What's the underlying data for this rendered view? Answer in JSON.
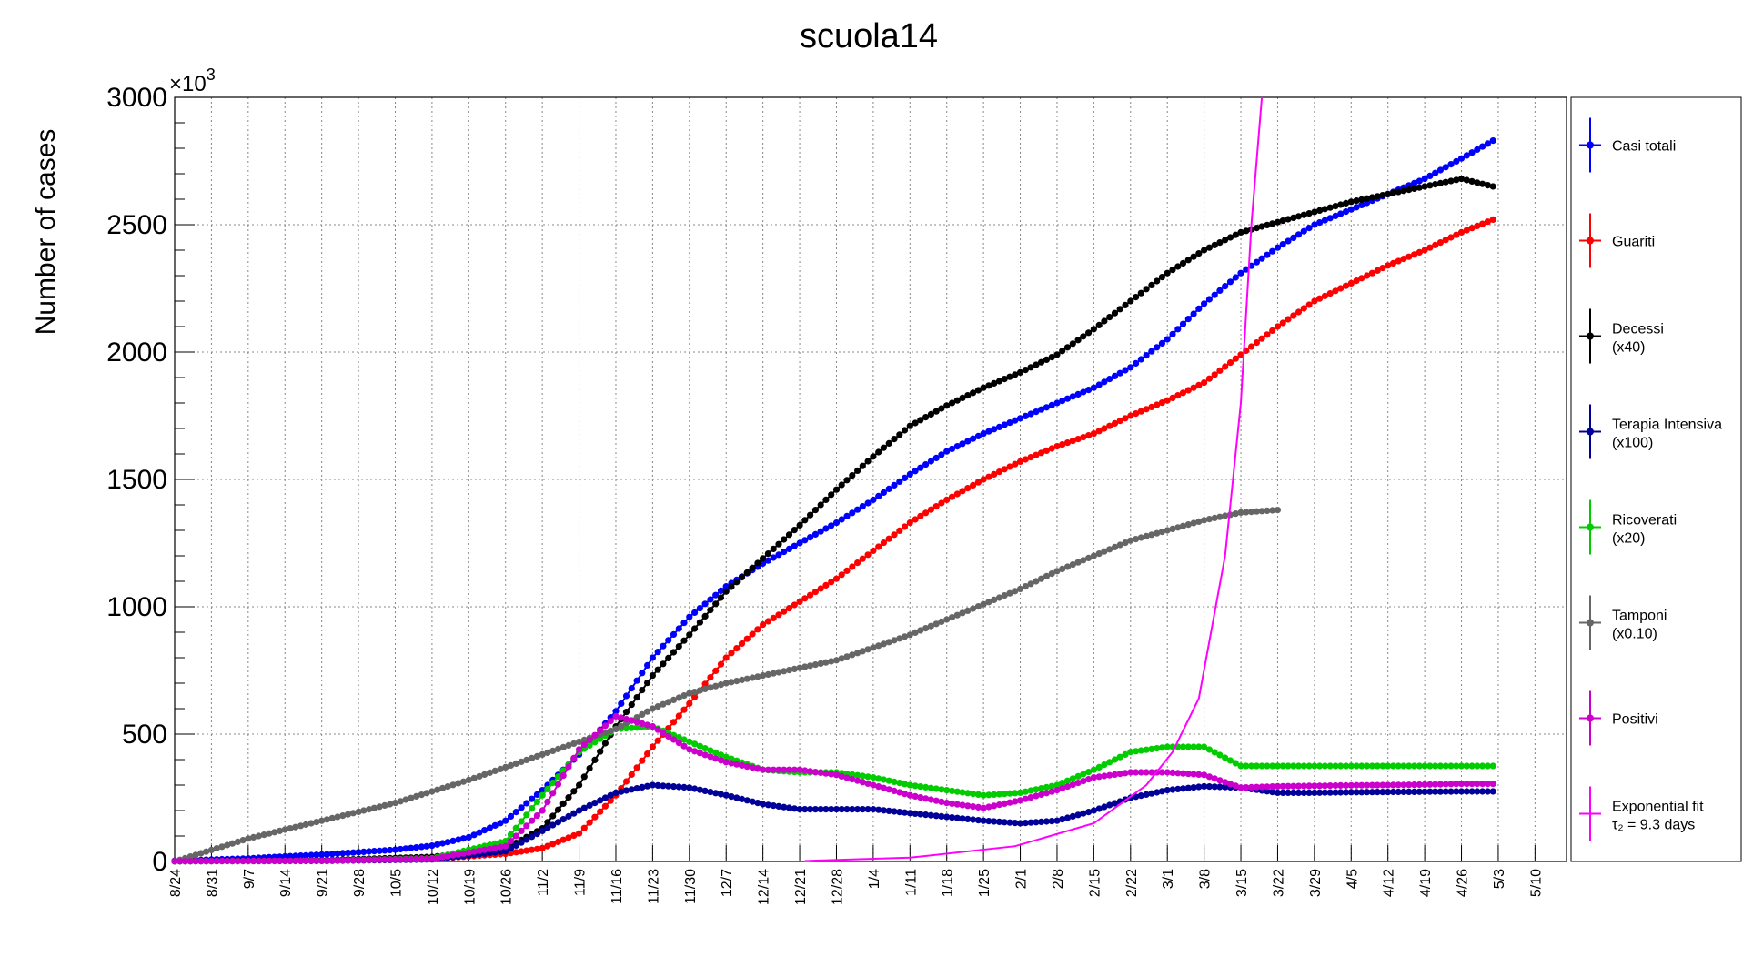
{
  "chart_data": {
    "type": "line",
    "title": "scuola14",
    "ylabel": "Number of cases",
    "y_multiplier_label": "×10",
    "y_multiplier_exp": "3",
    "ylim": [
      0,
      3000
    ],
    "yticks": [
      "0",
      "500",
      "1000",
      "1500",
      "2000",
      "2500",
      "3000"
    ],
    "xlim": [
      0,
      265
    ],
    "xticks": [
      "8/24",
      "8/31",
      "9/7",
      "9/14",
      "9/21",
      "9/28",
      "10/5",
      "10/12",
      "10/19",
      "10/26",
      "11/2",
      "11/9",
      "11/16",
      "11/23",
      "11/30",
      "12/7",
      "12/14",
      "12/21",
      "12/28",
      "1/4",
      "1/11",
      "1/18",
      "1/25",
      "2/1",
      "2/8",
      "2/15",
      "2/22",
      "3/1",
      "3/8",
      "3/15",
      "3/22",
      "3/29",
      "4/5",
      "4/12",
      "4/19",
      "4/26",
      "5/3",
      "5/10"
    ],
    "grid": true,
    "legend_position": "right",
    "series": [
      {
        "name": "Casi totali",
        "color": "#0000ff",
        "marker": true,
        "x": [
          0,
          14,
          28,
          42,
          49,
          56,
          63,
          70,
          77,
          84,
          91,
          98,
          105,
          112,
          119,
          126,
          133,
          140,
          147,
          154,
          161,
          168,
          175,
          182,
          189,
          196,
          203,
          210,
          217,
          224,
          231,
          238,
          245,
          251
        ],
        "y": [
          3,
          12,
          27,
          46,
          62,
          95,
          160,
          280,
          420,
          590,
          800,
          960,
          1080,
          1170,
          1250,
          1330,
          1420,
          1520,
          1610,
          1680,
          1740,
          1800,
          1860,
          1940,
          2050,
          2190,
          2310,
          2410,
          2500,
          2560,
          2620,
          2680,
          2760,
          2830
        ]
      },
      {
        "name": "Guariti",
        "color": "#ff0000",
        "marker": true,
        "x": [
          0,
          28,
          49,
          63,
          70,
          77,
          84,
          91,
          98,
          105,
          112,
          119,
          126,
          133,
          140,
          147,
          154,
          161,
          168,
          175,
          182,
          189,
          196,
          203,
          210,
          217,
          224,
          231,
          238,
          245,
          251
        ],
        "y": [
          1,
          4,
          10,
          30,
          52,
          110,
          260,
          450,
          620,
          800,
          930,
          1020,
          1110,
          1220,
          1330,
          1420,
          1500,
          1570,
          1630,
          1680,
          1750,
          1810,
          1880,
          1990,
          2100,
          2200,
          2270,
          2340,
          2400,
          2470,
          2520
        ]
      },
      {
        "name": "Decessi",
        "name2": "(x40)",
        "color": "#000000",
        "marker": true,
        "x": [
          0,
          28,
          49,
          63,
          70,
          77,
          84,
          91,
          98,
          105,
          112,
          119,
          126,
          133,
          140,
          147,
          154,
          161,
          168,
          175,
          182,
          189,
          196,
          203,
          210,
          217,
          224,
          231,
          238,
          245,
          251
        ],
        "y": [
          1,
          5,
          18,
          50,
          130,
          300,
          530,
          730,
          890,
          1060,
          1190,
          1320,
          1460,
          1590,
          1710,
          1790,
          1860,
          1920,
          1990,
          2090,
          2200,
          2310,
          2400,
          2470,
          2510,
          2550,
          2590,
          2620,
          2650,
          2680,
          2650
        ]
      },
      {
        "name": "Terapia Intensiva",
        "name2": "(x100)",
        "color": "#000099",
        "marker": true,
        "x": [
          0,
          28,
          49,
          63,
          70,
          77,
          84,
          91,
          98,
          105,
          112,
          119,
          126,
          133,
          140,
          147,
          154,
          161,
          168,
          175,
          182,
          189,
          196,
          203,
          210,
          217,
          224,
          231,
          238,
          245,
          251
        ],
        "y": [
          1,
          2,
          8,
          40,
          120,
          200,
          270,
          300,
          290,
          260,
          225,
          205,
          205,
          205,
          190,
          175,
          160,
          150,
          160,
          200,
          250,
          280,
          295,
          290,
          270,
          270,
          272,
          273,
          274,
          275,
          275
        ]
      },
      {
        "name": "Ricoverati",
        "name2": "(x20)",
        "color": "#00cc00",
        "marker": true,
        "x": [
          0,
          28,
          49,
          63,
          70,
          77,
          84,
          91,
          98,
          105,
          112,
          119,
          126,
          133,
          140,
          147,
          154,
          161,
          168,
          175,
          182,
          189,
          196,
          203,
          210,
          217,
          224,
          231,
          238,
          245,
          251
        ],
        "y": [
          1,
          3,
          12,
          80,
          260,
          430,
          520,
          530,
          470,
          410,
          360,
          350,
          350,
          330,
          300,
          280,
          260,
          270,
          300,
          360,
          430,
          450,
          450,
          375,
          375,
          375,
          375,
          375,
          375,
          375,
          375
        ]
      },
      {
        "name": "Tamponi",
        "name2": "(x0.10)",
        "color": "#666666",
        "marker": true,
        "x": [
          0,
          14,
          28,
          42,
          56,
          70,
          84,
          91,
          98,
          105,
          112,
          119,
          126,
          133,
          140,
          147,
          154,
          161,
          168,
          175,
          182,
          189,
          196,
          203,
          210
        ],
        "y": [
          0,
          90,
          160,
          230,
          320,
          420,
          520,
          600,
          660,
          700,
          730,
          760,
          790,
          840,
          890,
          950,
          1010,
          1070,
          1140,
          1200,
          1260,
          1300,
          1340,
          1370,
          1380
        ]
      },
      {
        "name": "Positivi",
        "color": "#cc00cc",
        "marker": true,
        "x": [
          0,
          28,
          49,
          63,
          70,
          77,
          84,
          91,
          98,
          105,
          112,
          119,
          126,
          133,
          140,
          147,
          154,
          161,
          168,
          175,
          182,
          189,
          196,
          203,
          210,
          217,
          224,
          231,
          238,
          245,
          251
        ],
        "y": [
          1,
          3,
          10,
          60,
          200,
          440,
          570,
          530,
          440,
          390,
          360,
          360,
          340,
          300,
          260,
          230,
          210,
          240,
          280,
          330,
          350,
          350,
          340,
          290,
          295,
          297,
          299,
          300,
          302,
          305,
          305
        ]
      },
      {
        "name": "Exponential fit",
        "name2": "τ₂ = 9.3 days",
        "color": "#ff00ff",
        "marker": false,
        "x": [
          120,
          140,
          160,
          175,
          185,
          190,
          195,
          200,
          203,
          205,
          207
        ],
        "y": [
          2,
          15,
          60,
          150,
          300,
          430,
          640,
          1200,
          1800,
          2500,
          3000
        ]
      }
    ]
  }
}
